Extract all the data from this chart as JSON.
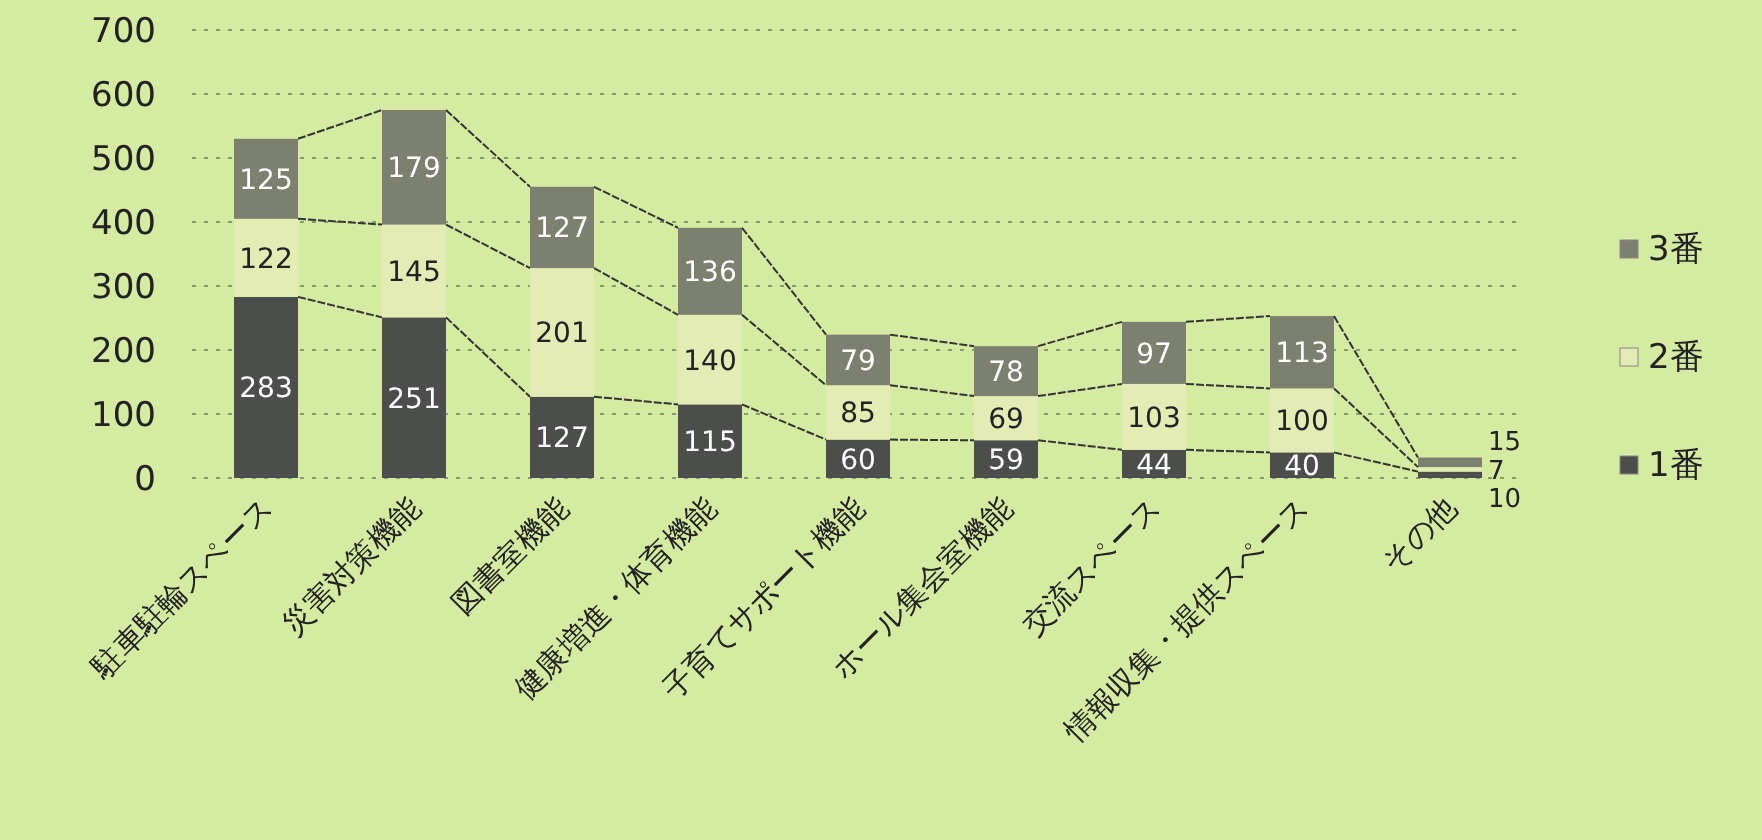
{
  "chart_data": {
    "type": "bar",
    "stacked": true,
    "data_labels": true,
    "grid": "y",
    "legend": "right",
    "categories": [
      "駐車駐輪スペース",
      "災害対策機能",
      "図書室機能",
      "健康増進・体育機能",
      "子育てサポート機能",
      "ホール集会室機能",
      "交流スペース",
      "情報収集・提供スペース",
      "その他"
    ],
    "series": [
      {
        "name": "1番",
        "color": "#4b4e4b",
        "values": [
          283,
          251,
          127,
          115,
          60,
          59,
          44,
          40,
          10
        ]
      },
      {
        "name": "2番",
        "color": "#e2ecb4",
        "values": [
          122,
          145,
          201,
          140,
          85,
          69,
          103,
          100,
          7
        ]
      },
      {
        "name": "3番",
        "color": "#7c806f",
        "values": [
          125,
          179,
          127,
          136,
          79,
          78,
          97,
          113,
          15
        ]
      }
    ],
    "ylim": [
      0,
      700
    ],
    "yticks": [
      0,
      100,
      200,
      300,
      400,
      500,
      600,
      700
    ]
  }
}
